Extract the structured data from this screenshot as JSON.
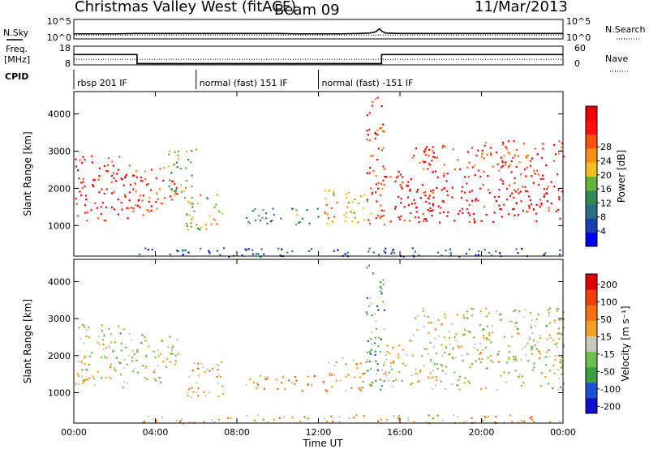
{
  "header": {
    "station": "Christmas Valley West (fitACF)",
    "beam": "Beam 09",
    "date": "11/Mar/2013"
  },
  "chart_data": [
    {
      "type": "line",
      "panel": "noise",
      "series": [
        {
          "name": "N.Sky",
          "style": "solid",
          "values": [
            1.3,
            1.3,
            1.3,
            1.4,
            1.4,
            1.4,
            1.4,
            1.4,
            1.4,
            1.4,
            1.4,
            1.3,
            1.3,
            1.3,
            1.4,
            1.5,
            1.8,
            2.2,
            2.6,
            2.0,
            1.5,
            1.4,
            1.4,
            1.4,
            1.4,
            1.4
          ]
        },
        {
          "name": "N.Search",
          "style": "dotted",
          "values": [
            1.0,
            1.0,
            1.0,
            1.0,
            1.0,
            1.0,
            1.0,
            1.0,
            1.0,
            1.0,
            1.0,
            1.0,
            1.0,
            1.0,
            1.0,
            1.0,
            1.0,
            1.0,
            1.0,
            1.0,
            1.0,
            1.0,
            1.0,
            1.0,
            1.0,
            1.0
          ]
        }
      ],
      "x_hours": [
        0,
        1,
        2,
        3,
        4,
        5,
        6,
        7,
        8,
        9,
        10,
        11,
        12,
        13,
        14,
        14.5,
        14.8,
        14.9,
        15.0,
        15.1,
        15.3,
        16,
        18,
        20,
        22,
        24
      ],
      "left_ticks": [
        "10^5",
        "10^0"
      ],
      "right_ticks": [
        "10^5",
        "10^0"
      ],
      "left_label": "N.Sky",
      "right_label": "N.Search",
      "ylim": [
        0,
        5
      ]
    },
    {
      "type": "line",
      "panel": "frequency",
      "series": [
        {
          "name": "Freq.",
          "style": "solid",
          "x": [
            0,
            3.1,
            3.1,
            15.1,
            15.1,
            24
          ],
          "values": [
            13.5,
            13.5,
            8.7,
            8.7,
            13.5,
            13.5
          ]
        },
        {
          "name": "Nave",
          "style": "dotted",
          "x": [
            0,
            24
          ],
          "values": [
            11,
            11
          ]
        }
      ],
      "left_label_line1": "Freq.",
      "left_label_line2": "[MHz]",
      "left_ticks": [
        "18",
        "8"
      ],
      "right_ticks": [
        "60",
        "0"
      ],
      "right_label": "Nave",
      "ylim": [
        8,
        18
      ]
    },
    {
      "type": "table",
      "panel": "cpid",
      "label": "CPID",
      "segments": [
        {
          "start": 0,
          "end": 6,
          "name": "rbsp 201 IF"
        },
        {
          "start": 6,
          "end": 12,
          "name": "normal (fast) 151 IF"
        },
        {
          "start": 12,
          "end": 24,
          "name": "normal (fast) -151 IF"
        }
      ]
    },
    {
      "type": "heatmap",
      "panel": "power",
      "ylabel": "Slant Range [km]",
      "yticks": [
        1000,
        2000,
        3000,
        4000
      ],
      "ylim": [
        180,
        4600
      ],
      "colorbar_label": "Power [dB]",
      "colorbar_ticks": [
        4,
        8,
        12,
        16,
        20,
        24,
        28
      ],
      "colorbar_colors": [
        "#0000ee",
        "#1a3fb0",
        "#2c6e86",
        "#2f8a55",
        "#64b33b",
        "#f0c020",
        "#f59015",
        "#ff5510",
        "#ff1010",
        "#ee0000"
      ],
      "regions": [
        {
          "x0": 0.05,
          "x1": 2.9,
          "r0": 1150,
          "r1": 2900,
          "level": 0.88
        },
        {
          "x0": 2.9,
          "x1": 5.1,
          "r0": 1300,
          "r1": 2600,
          "level": 0.78
        },
        {
          "x0": 4.6,
          "x1": 6.0,
          "r0": 1800,
          "r1": 3100,
          "level": 0.45
        },
        {
          "x0": 5.4,
          "x1": 7.4,
          "r0": 900,
          "r1": 1900,
          "level": 0.55
        },
        {
          "x0": 8.3,
          "x1": 12.0,
          "r0": 1050,
          "r1": 1500,
          "level": 0.35
        },
        {
          "x0": 12.2,
          "x1": 14.6,
          "r0": 1050,
          "r1": 2000,
          "level": 0.6
        },
        {
          "x0": 14.3,
          "x1": 15.2,
          "r0": 900,
          "r1": 4500,
          "level": 0.85
        },
        {
          "x0": 15.0,
          "x1": 24.0,
          "r0": 1100,
          "r1": 2500,
          "level": 0.92
        },
        {
          "x0": 16.5,
          "x1": 24.0,
          "r0": 2500,
          "r1": 3300,
          "level": 0.8
        },
        {
          "x0": 3.0,
          "x1": 24.0,
          "r0": 180,
          "r1": 420,
          "level": 0.2
        }
      ]
    },
    {
      "type": "heatmap",
      "panel": "velocity",
      "ylabel": "Slant Range [km]",
      "yticks": [
        1000,
        2000,
        3000,
        4000
      ],
      "ylim": [
        180,
        4600
      ],
      "colorbar_label": "Velocity [m s^-1]",
      "colorbar_ticks": [
        200,
        100,
        50,
        15,
        -15,
        -50,
        -100,
        -200
      ],
      "colorbar_colors": [
        "#1010cc",
        "#2050d0",
        "#3aa040",
        "#6cc04a",
        "#c8c8c0",
        "#f5a020",
        "#f57010",
        "#f04010",
        "#dd0000"
      ],
      "regions": [
        {
          "x0": 0.05,
          "x1": 2.9,
          "r0": 1150,
          "r1": 2900,
          "level": 0.5
        },
        {
          "x0": 2.9,
          "x1": 5.1,
          "r0": 1300,
          "r1": 2600,
          "level": 0.5
        },
        {
          "x0": 5.4,
          "x1": 7.4,
          "r0": 900,
          "r1": 1900,
          "level": 0.62
        },
        {
          "x0": 8.3,
          "x1": 12.0,
          "r0": 1050,
          "r1": 1500,
          "level": 0.62
        },
        {
          "x0": 12.2,
          "x1": 14.6,
          "r0": 1050,
          "r1": 2000,
          "level": 0.6
        },
        {
          "x0": 14.3,
          "x1": 15.2,
          "r0": 900,
          "r1": 4500,
          "level": 0.35
        },
        {
          "x0": 15.0,
          "x1": 24.0,
          "r0": 1100,
          "r1": 2500,
          "level": 0.5
        },
        {
          "x0": 16.5,
          "x1": 24.0,
          "r0": 2500,
          "r1": 3300,
          "level": 0.5
        },
        {
          "x0": 3.0,
          "x1": 24.0,
          "r0": 180,
          "r1": 420,
          "level": 0.62
        }
      ]
    }
  ],
  "xaxis": {
    "label": "Time UT",
    "ticks": [
      "00:00",
      "04:00",
      "08:00",
      "12:00",
      "16:00",
      "20:00",
      "00:00"
    ],
    "tick_hours": [
      0,
      4,
      8,
      12,
      16,
      20,
      24
    ]
  }
}
